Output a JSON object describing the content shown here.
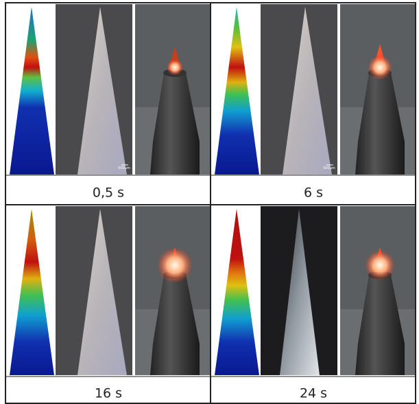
{
  "panels": [
    {
      "label": "0,5 s",
      "scale_bar": "500µm"
    },
    {
      "label": "6 s",
      "scale_bar": "500µm"
    },
    {
      "label": "16 s"
    },
    {
      "label": "24 s"
    }
  ]
}
